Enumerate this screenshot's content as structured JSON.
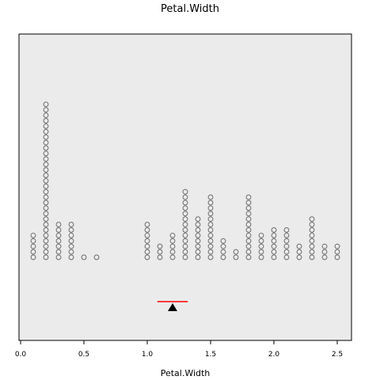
{
  "chart_data": {
    "type": "scatter",
    "subtype": "dot-plot",
    "title": "Petal.Width",
    "xlabel": "Petal.Width",
    "ylabel": "",
    "xlim": [
      0,
      2.6
    ],
    "xticks": [
      {
        "value": 0.0,
        "label": "0.0"
      },
      {
        "value": 0.5,
        "label": "0.5"
      },
      {
        "value": 1.0,
        "label": "1.0"
      },
      {
        "value": 1.5,
        "label": "1.5"
      },
      {
        "value": 2.0,
        "label": "2.0"
      },
      {
        "value": 2.5,
        "label": "2.5"
      }
    ],
    "stacks": [
      {
        "x": 0.1,
        "count": 5
      },
      {
        "x": 0.2,
        "count": 29
      },
      {
        "x": 0.3,
        "count": 7
      },
      {
        "x": 0.4,
        "count": 7
      },
      {
        "x": 0.5,
        "count": 1
      },
      {
        "x": 0.6,
        "count": 1
      },
      {
        "x": 1.0,
        "count": 7
      },
      {
        "x": 1.1,
        "count": 3
      },
      {
        "x": 1.2,
        "count": 5
      },
      {
        "x": 1.3,
        "count": 13
      },
      {
        "x": 1.4,
        "count": 8
      },
      {
        "x": 1.5,
        "count": 12
      },
      {
        "x": 1.6,
        "count": 4
      },
      {
        "x": 1.7,
        "count": 2
      },
      {
        "x": 1.8,
        "count": 12
      },
      {
        "x": 1.9,
        "count": 5
      },
      {
        "x": 2.0,
        "count": 6
      },
      {
        "x": 2.1,
        "count": 6
      },
      {
        "x": 2.2,
        "count": 3
      },
      {
        "x": 2.3,
        "count": 8
      },
      {
        "x": 2.4,
        "count": 3
      },
      {
        "x": 2.5,
        "count": 3
      }
    ],
    "mean_marker": {
      "x": 1.2,
      "shape": "triangle",
      "color": "#000000"
    },
    "interval": {
      "low": 1.08,
      "high": 1.32,
      "color": "#ff0000"
    },
    "grid": false,
    "background_color": "#ebebeb",
    "point_color": "#777777"
  }
}
